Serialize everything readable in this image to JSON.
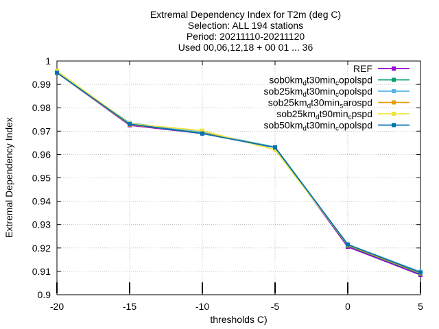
{
  "chart_data": {
    "type": "line",
    "title_lines": [
      "Extremal Dependency Index  for T2m (deg C)",
      "Selection: ALL    194 stations",
      "Period: 20211110-20211120",
      "Used 00,06,12,18 + 00 01 ... 36"
    ],
    "xlabel": "thresholds C)",
    "ylabel": "Extremal Dependency Index",
    "xlim": [
      -20,
      5
    ],
    "ylim": [
      0.9,
      1.0
    ],
    "x_ticks": [
      "-20",
      "-15",
      "-10",
      "-5",
      "0",
      "5"
    ],
    "y_ticks": [
      "0.9",
      "0.91",
      "0.92",
      "0.93",
      "0.94",
      "0.95",
      "0.96",
      "0.97",
      "0.98",
      "0.99",
      "1"
    ],
    "grid": true,
    "legend_position": "top-right",
    "x": [
      -20,
      -15,
      -10,
      -5,
      0,
      5
    ],
    "series": [
      {
        "name": "REF",
        "legend_parts": [
          [
            "REF",
            ""
          ]
        ],
        "color": "#9400d3",
        "marker": "square",
        "values": [
          0.995,
          0.9725,
          0.969,
          0.963,
          0.9205,
          0.9085
        ]
      },
      {
        "name": "sob0km_dt30min_copolspd",
        "legend_parts": [
          [
            "sob0km",
            ""
          ],
          [
            "d",
            "sub"
          ],
          [
            "t30min",
            ""
          ],
          [
            "c",
            "sub"
          ],
          [
            "opolspd",
            ""
          ]
        ],
        "color": "#009e73",
        "marker": "square",
        "values": [
          0.995,
          0.973,
          0.969,
          0.963,
          0.921,
          0.909
        ]
      },
      {
        "name": "sob25km_dt30min_copolspd",
        "legend_parts": [
          [
            "sob25km",
            ""
          ],
          [
            "d",
            "sub"
          ],
          [
            "t30min",
            ""
          ],
          [
            "c",
            "sub"
          ],
          [
            "opolspd",
            ""
          ]
        ],
        "color": "#56b4e9",
        "marker": "square",
        "values": [
          0.995,
          0.9735,
          0.9695,
          0.9632,
          0.9215,
          0.9098
        ]
      },
      {
        "name": "sob25km_dt30min_sarospd",
        "legend_parts": [
          [
            "sob25km",
            ""
          ],
          [
            "d",
            "sub"
          ],
          [
            "t30min",
            ""
          ],
          [
            "s",
            "sub"
          ],
          [
            "arospd",
            ""
          ]
        ],
        "color": "#e69f00",
        "marker": "square",
        "values": [
          0.995,
          0.9728,
          0.9692,
          0.963,
          0.9212,
          0.9092
        ]
      },
      {
        "name": "sob25km_dt90min_cpspd",
        "legend_parts": [
          [
            "sob25km",
            ""
          ],
          [
            "d",
            "sub"
          ],
          [
            "t90min",
            ""
          ],
          [
            "c",
            "sub"
          ],
          [
            "pspd",
            ""
          ]
        ],
        "color": "#f0e442",
        "marker": "square",
        "values": [
          0.9958,
          0.9732,
          0.9702,
          0.962,
          0.9215,
          0.9095
        ]
      },
      {
        "name": "sob50km_dt30min_copolspd",
        "legend_parts": [
          [
            "sob50km",
            ""
          ],
          [
            "d",
            "sub"
          ],
          [
            "t30min",
            ""
          ],
          [
            "c",
            "sub"
          ],
          [
            "opolspd",
            ""
          ]
        ],
        "color": "#0072b2",
        "marker": "square",
        "values": [
          0.995,
          0.973,
          0.969,
          0.963,
          0.9215,
          0.9095
        ]
      }
    ]
  }
}
